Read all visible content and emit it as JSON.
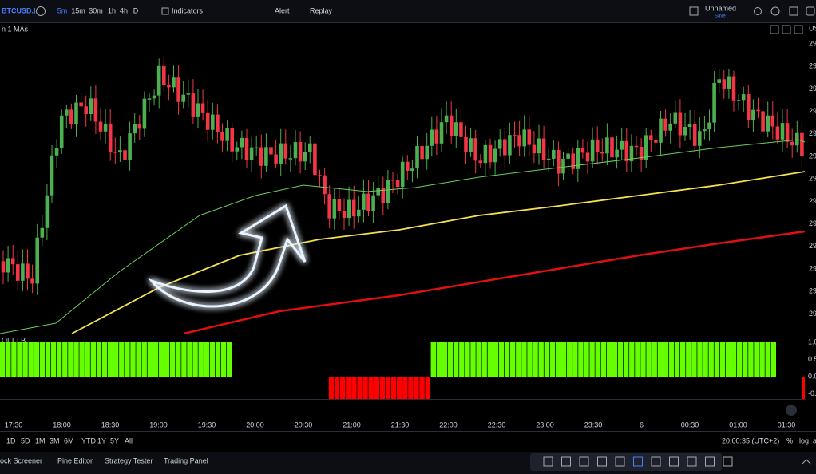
{
  "toolbar": {
    "symbol": "BTCUSD.I",
    "intervals": [
      "5m",
      "15m",
      "30m",
      "1h",
      "4h",
      "D"
    ],
    "indicators": "Indicators",
    "alert": "Alert",
    "replay": "Replay",
    "layout_name": "Unnamed",
    "save": "Save"
  },
  "main_pane": {
    "legend": "n 1 MAs",
    "price_axis_title": "US",
    "price_axis_labels": [
      "29",
      "29",
      "29",
      "29",
      "29",
      "29",
      "29",
      "29",
      "29",
      "29",
      "29",
      "29",
      "29"
    ]
  },
  "indicator_pane": {
    "legend": "OLT LB",
    "axis_labels": [
      "1.0",
      "0.5",
      "0.0",
      "-0.5",
      "-1."
    ]
  },
  "time_axis": {
    "labels": [
      "17:30",
      "18:00",
      "18:30",
      "19:00",
      "19:30",
      "20:00",
      "20:30",
      "21:00",
      "21:30",
      "22:00",
      "22:30",
      "23:00",
      "23:30",
      "6",
      "00:30",
      "01:00",
      "01:30"
    ]
  },
  "range_bar": {
    "buttons": [
      "1D",
      "5D",
      "1M",
      "3M",
      "6M",
      "YTD",
      "1Y",
      "5Y",
      "All"
    ],
    "clock": "20:00:35 (UTC+2)",
    "percent": "%",
    "log": "log",
    "auto": "a"
  },
  "bottom_panel": {
    "tabs": [
      "ock Screener",
      "Pine Editor",
      "Strategy Tester",
      "Trading Panel"
    ]
  }
}
